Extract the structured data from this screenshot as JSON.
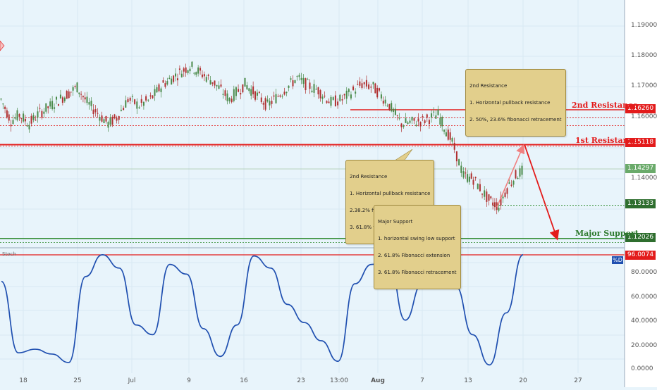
{
  "panels": {
    "stoch_label": "Stoch",
    "pd_label": "%D"
  },
  "colors": {
    "background": "#e8f4fb",
    "up_candle": "#4a8a4a",
    "down_candle": "#b03030",
    "resistance": "#e31b1b",
    "support": "#2e8b2e",
    "stoch_line": "#1f4fb0",
    "annotation_bg": "#e2cf8c"
  },
  "levels": {
    "second_resistance": {
      "label": "2nd Resistance",
      "price": "1.16260"
    },
    "first_resistance": {
      "label": "1st Resistance",
      "price": "1.15118"
    },
    "current": {
      "price": "1.14297"
    },
    "swing_low": {
      "price": "1.13133"
    },
    "major_support": {
      "label": "Major Support",
      "price": "1.12026"
    }
  },
  "annotations": {
    "top": {
      "lines": [
        "2nd Resistance",
        "1. Horizontal pullback resistance",
        "2. 50%, 23.6% fibonacci retracement"
      ]
    },
    "middle": {
      "lines": [
        "2nd Resistance",
        "1. Horizontal pullback resistance",
        "2.38.2% fibonacci retracement",
        "3. 61.8% fibonacci extension"
      ]
    },
    "bottom": {
      "lines": [
        "Major Support",
        "1. horizontal swing low support",
        "2. 61.8% Fibonacci extension",
        "3. 61.8% Fibonacci retracement"
      ]
    }
  },
  "stoch": {
    "value": "96.0074"
  },
  "chart_data": [
    {
      "type": "candlestick",
      "title": "",
      "y_ticks": [
        "1.19000",
        "1.18000",
        "1.17000",
        "1.16000",
        "1.14000"
      ],
      "x_ticks": [
        "18",
        "25",
        "Jul",
        "9",
        "16",
        "23",
        "13:00",
        "Aug",
        "7",
        "13",
        "20",
        "27"
      ],
      "horizontal_levels": [
        1.1626,
        1.1601,
        1.1574,
        1.15118,
        1.13133,
        1.12026,
        1.1196
      ],
      "close_path": [
        [
          "Jun 18",
          1.166
        ],
        [
          "Jun 19",
          1.159
        ],
        [
          "Jun 20",
          1.161
        ],
        [
          "Jun 21",
          1.158
        ],
        [
          "Jun 22",
          1.161
        ],
        [
          "Jun 25",
          1.17
        ],
        [
          "Jun 26",
          1.165
        ],
        [
          "Jun 27",
          1.158
        ],
        [
          "Jun 28",
          1.16
        ],
        [
          "Jun 29",
          1.166
        ],
        [
          "Jul 2",
          1.164
        ],
        [
          "Jul 3",
          1.166
        ],
        [
          "Jul 5",
          1.171
        ],
        [
          "Jul 9",
          1.177
        ],
        [
          "Jul 10",
          1.172
        ],
        [
          "Jul 12",
          1.166
        ],
        [
          "Jul 16",
          1.171
        ],
        [
          "Jul 18",
          1.164
        ],
        [
          "Jul 20",
          1.173
        ],
        [
          "Jul 23",
          1.171
        ],
        [
          "Jul 24",
          1.169
        ],
        [
          "Jul 26",
          1.165
        ],
        [
          "Jul 27",
          1.166
        ],
        [
          "Jul 30",
          1.171
        ],
        [
          "Jul 31",
          1.17
        ],
        [
          "Aug 2",
          1.165
        ],
        [
          "Aug 3",
          1.158
        ],
        [
          "Aug 6",
          1.159
        ],
        [
          "Aug 8",
          1.161
        ],
        [
          "Aug 9",
          1.152
        ],
        [
          "Aug 10",
          1.141
        ],
        [
          "Aug 13",
          1.14
        ],
        [
          "Aug 14",
          1.133
        ],
        [
          "Aug 15",
          1.131
        ],
        [
          "Aug 16",
          1.137
        ],
        [
          "Aug 17",
          1.141
        ],
        [
          "Aug 20",
          1.143
        ]
      ]
    },
    {
      "type": "line",
      "title": "Stoch",
      "series": [
        {
          "name": "%D",
          "values": [
            74,
            15,
            18,
            14,
            7,
            78,
            96,
            85,
            38,
            30,
            88,
            80,
            35,
            12,
            38,
            95,
            85,
            55,
            40,
            25,
            8,
            72,
            88,
            92,
            42,
            72,
            88,
            70,
            30,
            5,
            48,
            96
          ]
        }
      ],
      "y_ticks": [
        "80.0000",
        "60.0000",
        "40.0000",
        "20.0000",
        "0.0000"
      ],
      "ylim": [
        0,
        100
      ]
    }
  ]
}
